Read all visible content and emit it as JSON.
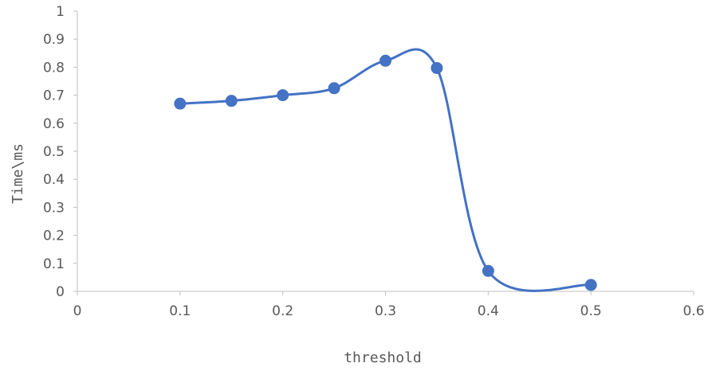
{
  "chart_data": {
    "type": "scatter",
    "title": "",
    "xlabel": "threshold",
    "ylabel": "Time\\ms",
    "xlim": [
      0,
      0.6
    ],
    "ylim": [
      0,
      1
    ],
    "x_ticks": [
      0,
      0.1,
      0.2,
      0.3,
      0.4,
      0.5,
      0.6
    ],
    "y_ticks": [
      0,
      0.1,
      0.2,
      0.3,
      0.4,
      0.5,
      0.6,
      0.7,
      0.8,
      0.9,
      1
    ],
    "x_tick_labels": [
      "0",
      "0.1",
      "0.2",
      "0.3",
      "0.4",
      "0.5",
      "0.6"
    ],
    "y_tick_labels": [
      "0",
      "0.1",
      "0.2",
      "0.3",
      "0.4",
      "0.5",
      "0.6",
      "0.7",
      "0.8",
      "0.9",
      "1"
    ],
    "grid": false,
    "smooth": true,
    "series": [
      {
        "x": [
          0.1,
          0.15,
          0.2,
          0.25,
          0.3,
          0.35,
          0.4,
          0.5
        ],
        "y": [
          0.67,
          0.68,
          0.7,
          0.725,
          0.823,
          0.797,
          0.073,
          0.023
        ],
        "color": "#4472C4"
      }
    ]
  }
}
